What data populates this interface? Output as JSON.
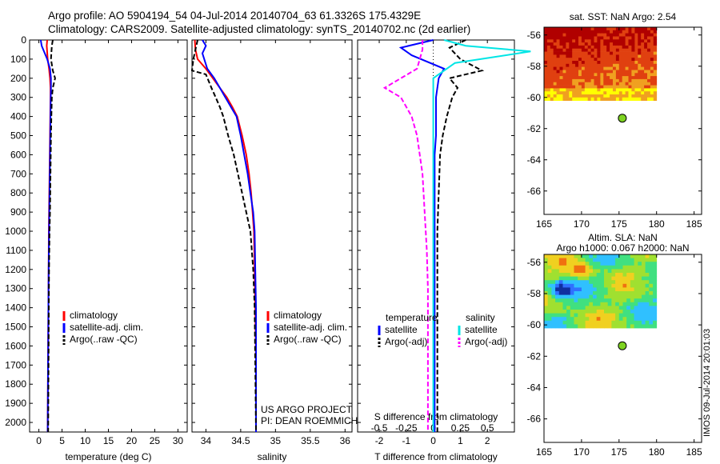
{
  "header": {
    "title_line1": "Argo profile: AO 5904194_54 04-Jul-2014 20140704_63 61.3326S 175.4329E",
    "title_line2": "Climatology: CARS2009. Satellite-adjusted climatology: synTS_20140702.nc (2d earlier)"
  },
  "stamp": "IMOS 09-Jul-2014 20:01:03",
  "colors": {
    "climatology": "#ff0000",
    "satellite": "#0000ff",
    "argo": "#000000",
    "salinity_sat": "#00e5e5",
    "salinity_argo": "#ff00ff",
    "float_marker": "#7ed321"
  },
  "chart_data": [
    {
      "id": "temperature",
      "type": "line",
      "xlabel": "temperature (deg C)",
      "ylabel": "",
      "xlim": [
        -2,
        32
      ],
      "ylim": [
        2050,
        0
      ],
      "xticks": [
        0,
        5,
        10,
        15,
        20,
        25,
        30
      ],
      "yticks": [
        0,
        100,
        200,
        300,
        400,
        500,
        600,
        700,
        800,
        900,
        1000,
        1100,
        1200,
        1300,
        1400,
        1500,
        1600,
        1700,
        1800,
        1900,
        2000
      ],
      "legend": {
        "placement": "center-right",
        "entries": [
          "climatology",
          "satellite-adj. clim.",
          "Argo(..raw -QC)"
        ]
      },
      "series": [
        {
          "name": "climatology",
          "style": "solid",
          "color": "#ff0000",
          "x": [
            1.8,
            1.7,
            1.9,
            2.2,
            2.4,
            2.5,
            2.5,
            2.45,
            2.4,
            2.35,
            2.3,
            2.25,
            2.2,
            2.15,
            2.1,
            2.05,
            2.0,
            1.95,
            1.9
          ],
          "y": [
            0,
            30,
            100,
            150,
            200,
            250,
            300,
            400,
            500,
            600,
            700,
            800,
            900,
            1000,
            1200,
            1400,
            1600,
            1800,
            2050
          ]
        },
        {
          "name": "satellite-adj. clim.",
          "style": "solid",
          "color": "#0000ff",
          "x": [
            0.4,
            0.6,
            1.8,
            2.4,
            2.6,
            2.6,
            2.55,
            2.5,
            2.45,
            2.4,
            2.35,
            2.3,
            2.25,
            2.2,
            2.1,
            2.05,
            2.0,
            1.95,
            1.9
          ],
          "y": [
            0,
            30,
            100,
            150,
            200,
            250,
            300,
            400,
            500,
            600,
            700,
            800,
            900,
            1000,
            1200,
            1400,
            1600,
            1800,
            2050
          ]
        },
        {
          "name": "Argo(..raw -QC)",
          "style": "dashed",
          "color": "#000000",
          "x": [
            3.0,
            2.8,
            2.6,
            3.0,
            3.5,
            3.0,
            2.8,
            2.7,
            2.6,
            2.55,
            2.5,
            2.45,
            2.4,
            2.3,
            2.2,
            2.15,
            2.1,
            2.05,
            2.0
          ],
          "y": [
            0,
            30,
            100,
            160,
            200,
            250,
            300,
            400,
            500,
            600,
            700,
            800,
            900,
            1000,
            1200,
            1400,
            1600,
            1800,
            2050
          ]
        }
      ]
    },
    {
      "id": "salinity",
      "type": "line",
      "xlabel": "salinity",
      "ylabel": "",
      "xlim": [
        33.8,
        36.1
      ],
      "ylim": [
        2050,
        0
      ],
      "xticks": [
        34,
        34.5,
        35,
        35.5,
        36
      ],
      "xtick_labels": [
        "34",
        "34.5",
        "35",
        "35.5",
        "36"
      ],
      "legend": {
        "placement": "center-right",
        "entries": [
          "climatology",
          "satellite-adj. clim.",
          "Argo(..raw -QC)"
        ]
      },
      "annotations": [
        "US ARGO PROJECT",
        "PI: DEAN ROEMMICH"
      ],
      "series": [
        {
          "name": "climatology",
          "style": "solid",
          "color": "#ff0000",
          "x": [
            33.84,
            33.85,
            33.88,
            34.0,
            34.1,
            34.2,
            34.3,
            34.38,
            34.45,
            34.52,
            34.58,
            34.62,
            34.65,
            34.67,
            34.69,
            34.7,
            34.71,
            34.72,
            34.72
          ],
          "y": [
            0,
            50,
            100,
            150,
            200,
            250,
            300,
            350,
            400,
            500,
            600,
            700,
            800,
            900,
            1000,
            1200,
            1400,
            1700,
            2050
          ]
        },
        {
          "name": "satellite-adj. clim.",
          "style": "solid",
          "color": "#0000ff",
          "x": [
            33.95,
            34.0,
            33.95,
            34.02,
            34.12,
            34.2,
            34.28,
            34.36,
            34.44,
            34.5,
            34.55,
            34.6,
            34.64,
            34.68,
            34.7,
            34.71,
            34.72,
            34.72,
            34.72
          ],
          "y": [
            0,
            30,
            70,
            150,
            200,
            250,
            300,
            350,
            400,
            500,
            600,
            700,
            800,
            900,
            1000,
            1200,
            1400,
            1700,
            2050
          ]
        },
        {
          "name": "Argo(..raw -QC)",
          "style": "dashed",
          "color": "#000000",
          "x": [
            33.88,
            33.85,
            33.82,
            33.8,
            34.0,
            34.08,
            34.14,
            34.2,
            34.25,
            34.32,
            34.4,
            34.46,
            34.52,
            34.58,
            34.64,
            34.68,
            34.7,
            34.71,
            34.72
          ],
          "y": [
            0,
            50,
            100,
            160,
            180,
            250,
            300,
            350,
            400,
            500,
            600,
            700,
            800,
            900,
            1000,
            1200,
            1400,
            1700,
            2050
          ]
        }
      ]
    },
    {
      "id": "difference",
      "type": "line",
      "xlabel": "T difference from climatology",
      "xlabel_top": "S difference from climatology",
      "ylabel": "",
      "xlim": [
        -2.8,
        3.0
      ],
      "ylim": [
        2050,
        0
      ],
      "xticks": [
        -2,
        -1,
        0,
        1,
        2
      ],
      "xticks_top": [
        -0.5,
        -0.25,
        0,
        0.25,
        0.5
      ],
      "legend": {
        "placement": "center",
        "entries": [
          "temperature",
          "satellite",
          "Argo(-adj)",
          "salinity",
          "satellite",
          "Argo(-adj)"
        ]
      },
      "series": [
        {
          "name": "satellite",
          "group": "temperature",
          "style": "solid",
          "color": "#0000ff",
          "x": [
            0.0,
            -1.2,
            -0.8,
            0.4,
            0.2,
            0.1,
            0.1,
            0.1,
            0.05,
            0.05,
            0.05,
            0.05,
            0.05,
            0.05,
            0.05,
            0.05,
            0.05
          ],
          "y": [
            0,
            40,
            80,
            150,
            200,
            300,
            400,
            500,
            600,
            800,
            1000,
            1200,
            1400,
            1600,
            1800,
            1950,
            2050
          ]
        },
        {
          "name": "Argo(-adj)",
          "group": "temperature",
          "style": "dashed",
          "color": "#000000",
          "x": [
            1.2,
            0.6,
            1.0,
            1.8,
            0.6,
            0.9,
            0.7,
            0.5,
            0.35,
            0.25,
            0.2,
            0.15,
            0.15,
            0.15,
            0.15,
            0.15,
            0.15
          ],
          "y": [
            0,
            40,
            100,
            160,
            200,
            250,
            300,
            400,
            500,
            600,
            800,
            1000,
            1200,
            1400,
            1600,
            1800,
            2050
          ]
        },
        {
          "name": "satellite",
          "group": "salinity",
          "style": "solid",
          "color": "#00e5e5",
          "x": [
            0.1,
            0.3,
            0.9,
            0.2,
            0.0,
            0.0,
            0.0,
            0.0,
            0.0,
            0.0,
            0.0,
            0.0,
            0.0,
            0.0,
            0.0
          ],
          "y": [
            0,
            30,
            60,
            120,
            200,
            300,
            400,
            500,
            700,
            900,
            1100,
            1300,
            1500,
            1800,
            2050
          ]
        },
        {
          "name": "Argo(-adj)",
          "group": "salinity",
          "style": "dashed",
          "color": "#ff00ff",
          "x": [
            -0.1,
            -0.1,
            -0.15,
            -0.3,
            -0.45,
            -0.3,
            -0.2,
            -0.15,
            -0.1,
            -0.08,
            -0.06,
            -0.05,
            -0.05,
            -0.05,
            -0.05
          ],
          "y": [
            0,
            50,
            150,
            200,
            250,
            300,
            400,
            500,
            700,
            900,
            1100,
            1300,
            1500,
            1800,
            2050
          ]
        }
      ]
    },
    {
      "id": "sst_map",
      "type": "heatmap",
      "title": "sat. SST: NaN Argo: 2.54",
      "xlim": [
        165,
        186
      ],
      "ylim": [
        -67.5,
        -55.5
      ],
      "xticks": [
        165,
        170,
        175,
        180,
        185
      ],
      "yticks": [
        -56,
        -58,
        -60,
        -62,
        -64,
        -66
      ],
      "data_extent": {
        "lon": [
          165,
          180
        ],
        "lat": [
          -60.2,
          -55.5
        ]
      },
      "float_position": {
        "lon": 175.4329,
        "lat": -61.3326
      }
    },
    {
      "id": "sla_map",
      "type": "heatmap",
      "title": "Altim. SLA: NaN",
      "subtitle": "Argo h1000: 0.067 h2000: NaN",
      "xlim": [
        165,
        186
      ],
      "ylim": [
        -67.5,
        -55.5
      ],
      "xticks": [
        165,
        170,
        175,
        180,
        185
      ],
      "yticks": [
        -56,
        -58,
        -60,
        -62,
        -64,
        -66
      ],
      "data_extent": {
        "lon": [
          165,
          180
        ],
        "lat": [
          -60.2,
          -55.5
        ]
      },
      "float_position": {
        "lon": 175.4329,
        "lat": -61.3326
      }
    }
  ]
}
